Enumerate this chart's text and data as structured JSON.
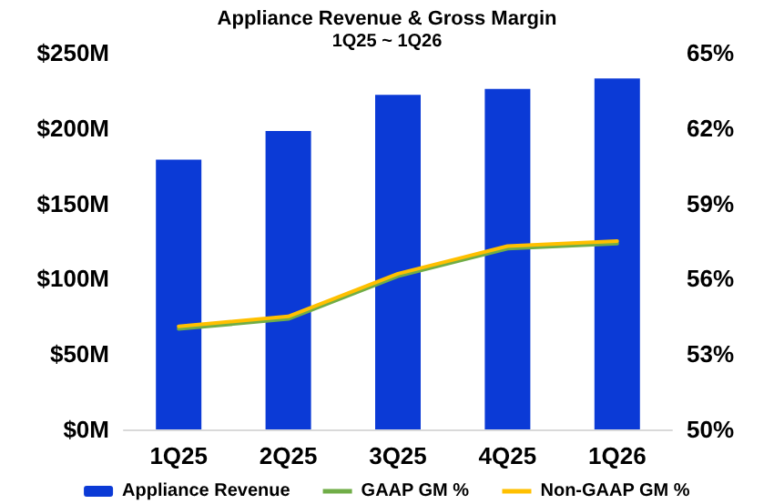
{
  "chart_data": {
    "type": "bar",
    "title": "Appliance Revenue & Gross Margin",
    "subtitle": "1Q25 ~ 1Q26",
    "categories": [
      "1Q25",
      "2Q25",
      "3Q25",
      "4Q25",
      "1Q26"
    ],
    "series": [
      {
        "name": "Appliance Revenue",
        "color": "#0b3ad6",
        "values": [
          179,
          198,
          222,
          226,
          233
        ]
      },
      {
        "name": "GAAP GM %",
        "type": "line",
        "axis": "y2",
        "color": "#70ad47",
        "values": [
          54.0,
          54.4,
          56.1,
          57.2,
          57.4
        ]
      },
      {
        "name": "Non-GAAP GM %",
        "type": "line",
        "axis": "y2",
        "color": "#ffc000",
        "values": [
          54.1,
          54.5,
          56.2,
          57.3,
          57.5
        ]
      }
    ],
    "ylim": [
      0,
      250
    ],
    "yticks": [
      {
        "value": 0,
        "label": "$0M"
      },
      {
        "value": 50,
        "label": "$50M"
      },
      {
        "value": 100,
        "label": "$100M"
      },
      {
        "value": 150,
        "label": "$150M"
      },
      {
        "value": 200,
        "label": "$200M"
      },
      {
        "value": 250,
        "label": "$250M"
      }
    ],
    "y2lim": [
      50,
      65
    ],
    "y2ticks": [
      {
        "value": 50,
        "label": "50%"
      },
      {
        "value": 53,
        "label": "53%"
      },
      {
        "value": 56,
        "label": "56%"
      },
      {
        "value": 59,
        "label": "59%"
      },
      {
        "value": 62,
        "label": "62%"
      },
      {
        "value": 65,
        "label": "65%"
      }
    ],
    "grid": false,
    "legend": "bottom",
    "marker": "none",
    "line_style": "solid"
  }
}
